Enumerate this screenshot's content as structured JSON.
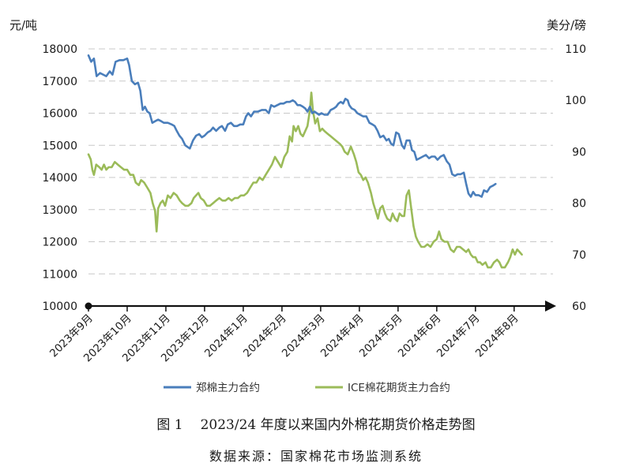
{
  "chart_data": {
    "type": "line",
    "title": "",
    "y_left": {
      "label": "元/吨",
      "range": [
        10000,
        18000
      ],
      "ticks": [
        10000,
        11000,
        12000,
        13000,
        14000,
        15000,
        16000,
        17000,
        18000
      ]
    },
    "y_right": {
      "label": "美分/磅",
      "range": [
        60,
        110
      ],
      "ticks": [
        60,
        70,
        80,
        90,
        100,
        110
      ]
    },
    "x_labels": [
      "2023年9月",
      "2023年10月",
      "2023年11月",
      "2023年12月",
      "2024年1月",
      "2024年2月",
      "2024年3月",
      "2024年4月",
      "2024年5月",
      "2024年6月",
      "2024年7月",
      "2024年8月"
    ],
    "x_range": [
      0,
      11.8
    ],
    "grid": "horizontal dashed",
    "legend_position": "bottom",
    "series": [
      {
        "name": "郑棉主力合约",
        "axis": "left",
        "color": "#4a7ebb",
        "points": [
          [
            0,
            17800
          ],
          [
            0.07,
            17600
          ],
          [
            0.14,
            17700
          ],
          [
            0.21,
            17150
          ],
          [
            0.3,
            17250
          ],
          [
            0.38,
            17200
          ],
          [
            0.46,
            17150
          ],
          [
            0.55,
            17300
          ],
          [
            0.62,
            17200
          ],
          [
            0.7,
            17600
          ],
          [
            0.8,
            17650
          ],
          [
            0.9,
            17650
          ],
          [
            1.0,
            17700
          ],
          [
            1.05,
            17500
          ],
          [
            1.12,
            17000
          ],
          [
            1.2,
            16900
          ],
          [
            1.28,
            16950
          ],
          [
            1.34,
            16700
          ],
          [
            1.4,
            16100
          ],
          [
            1.46,
            16200
          ],
          [
            1.52,
            16050
          ],
          [
            1.58,
            16000
          ],
          [
            1.65,
            15700
          ],
          [
            1.72,
            15750
          ],
          [
            1.8,
            15800
          ],
          [
            1.88,
            15750
          ],
          [
            1.95,
            15700
          ],
          [
            2.05,
            15700
          ],
          [
            2.15,
            15650
          ],
          [
            2.22,
            15600
          ],
          [
            2.28,
            15450
          ],
          [
            2.35,
            15300
          ],
          [
            2.42,
            15200
          ],
          [
            2.5,
            15000
          ],
          [
            2.56,
            14950
          ],
          [
            2.62,
            14900
          ],
          [
            2.7,
            15150
          ],
          [
            2.78,
            15300
          ],
          [
            2.86,
            15350
          ],
          [
            2.93,
            15250
          ],
          [
            3.0,
            15300
          ],
          [
            3.08,
            15400
          ],
          [
            3.15,
            15450
          ],
          [
            3.22,
            15550
          ],
          [
            3.3,
            15450
          ],
          [
            3.38,
            15550
          ],
          [
            3.45,
            15600
          ],
          [
            3.53,
            15450
          ],
          [
            3.6,
            15650
          ],
          [
            3.68,
            15700
          ],
          [
            3.76,
            15600
          ],
          [
            3.84,
            15600
          ],
          [
            3.92,
            15650
          ],
          [
            4.0,
            15650
          ],
          [
            4.07,
            15900
          ],
          [
            4.13,
            16000
          ],
          [
            4.2,
            15900
          ],
          [
            4.28,
            16050
          ],
          [
            4.38,
            16050
          ],
          [
            4.48,
            16100
          ],
          [
            4.58,
            16100
          ],
          [
            4.66,
            16000
          ],
          [
            4.72,
            16250
          ],
          [
            4.8,
            16200
          ],
          [
            4.88,
            16250
          ],
          [
            4.96,
            16300
          ],
          [
            5.04,
            16300
          ],
          [
            5.12,
            16350
          ],
          [
            5.2,
            16350
          ],
          [
            5.28,
            16400
          ],
          [
            5.34,
            16350
          ],
          [
            5.4,
            16250
          ],
          [
            5.47,
            16250
          ],
          [
            5.54,
            16200
          ],
          [
            5.6,
            16150
          ],
          [
            5.66,
            16050
          ],
          [
            5.72,
            16200
          ],
          [
            5.78,
            16000
          ],
          [
            5.84,
            16050
          ],
          [
            5.9,
            16000
          ],
          [
            5.96,
            15950
          ],
          [
            6.02,
            16000
          ],
          [
            6.1,
            15950
          ],
          [
            6.18,
            15950
          ],
          [
            6.26,
            16100
          ],
          [
            6.34,
            16150
          ],
          [
            6.4,
            16200
          ],
          [
            6.46,
            16300
          ],
          [
            6.52,
            16350
          ],
          [
            6.58,
            16300
          ],
          [
            6.64,
            16450
          ],
          [
            6.7,
            16400
          ],
          [
            6.74,
            16250
          ],
          [
            6.8,
            16150
          ],
          [
            6.88,
            16100
          ],
          [
            6.95,
            16000
          ],
          [
            7.02,
            15950
          ],
          [
            7.1,
            15900
          ],
          [
            7.18,
            15900
          ],
          [
            7.26,
            15700
          ],
          [
            7.34,
            15650
          ],
          [
            7.4,
            15600
          ],
          [
            7.47,
            15450
          ],
          [
            7.54,
            15250
          ],
          [
            7.62,
            15300
          ],
          [
            7.7,
            15150
          ],
          [
            7.76,
            15200
          ],
          [
            7.82,
            15050
          ],
          [
            7.88,
            15000
          ],
          [
            7.95,
            15400
          ],
          [
            8.02,
            15350
          ],
          [
            8.1,
            15000
          ],
          [
            8.16,
            14900
          ],
          [
            8.22,
            15150
          ],
          [
            8.3,
            15150
          ],
          [
            8.36,
            14850
          ],
          [
            8.42,
            14800
          ],
          [
            8.48,
            14550
          ],
          [
            8.56,
            14600
          ],
          [
            8.64,
            14650
          ],
          [
            8.72,
            14700
          ],
          [
            8.8,
            14600
          ],
          [
            8.87,
            14650
          ],
          [
            8.95,
            14650
          ],
          [
            9.02,
            14550
          ],
          [
            9.1,
            14650
          ],
          [
            9.18,
            14700
          ],
          [
            9.26,
            14500
          ],
          [
            9.33,
            14400
          ],
          [
            9.4,
            14100
          ],
          [
            9.47,
            14050
          ],
          [
            9.54,
            14100
          ],
          [
            9.62,
            14100
          ],
          [
            9.7,
            14150
          ],
          [
            9.76,
            13800
          ],
          [
            9.82,
            13500
          ],
          [
            9.88,
            13400
          ],
          [
            9.94,
            13550
          ],
          [
            10.0,
            13450
          ],
          [
            10.08,
            13450
          ],
          [
            10.16,
            13400
          ],
          [
            10.22,
            13600
          ],
          [
            10.3,
            13550
          ],
          [
            10.38,
            13700
          ],
          [
            10.46,
            13750
          ],
          [
            10.52,
            13800
          ]
        ]
      },
      {
        "name": "ICE棉花期货主力合约",
        "axis": "right",
        "color": "#9bbb59",
        "points": [
          [
            0,
            89.5
          ],
          [
            0.06,
            88.5
          ],
          [
            0.1,
            86.5
          ],
          [
            0.14,
            85.5
          ],
          [
            0.2,
            87.5
          ],
          [
            0.28,
            87
          ],
          [
            0.34,
            86.5
          ],
          [
            0.4,
            87.5
          ],
          [
            0.46,
            86.5
          ],
          [
            0.52,
            87
          ],
          [
            0.6,
            87
          ],
          [
            0.68,
            88
          ],
          [
            0.76,
            87.5
          ],
          [
            0.84,
            87
          ],
          [
            0.92,
            86.5
          ],
          [
            1.0,
            86.5
          ],
          [
            1.08,
            85.5
          ],
          [
            1.16,
            85.5
          ],
          [
            1.22,
            84
          ],
          [
            1.3,
            83.5
          ],
          [
            1.36,
            84.5
          ],
          [
            1.44,
            84
          ],
          [
            1.52,
            83
          ],
          [
            1.6,
            82
          ],
          [
            1.66,
            80
          ],
          [
            1.72,
            78.5
          ],
          [
            1.76,
            74.5
          ],
          [
            1.8,
            79
          ],
          [
            1.86,
            80
          ],
          [
            1.92,
            80.5
          ],
          [
            1.98,
            79.5
          ],
          [
            2.05,
            81.5
          ],
          [
            2.12,
            81
          ],
          [
            2.2,
            82
          ],
          [
            2.28,
            81.5
          ],
          [
            2.36,
            80.5
          ],
          [
            2.42,
            80
          ],
          [
            2.5,
            79.5
          ],
          [
            2.58,
            79.5
          ],
          [
            2.66,
            80
          ],
          [
            2.72,
            81
          ],
          [
            2.78,
            81.5
          ],
          [
            2.84,
            82
          ],
          [
            2.9,
            81
          ],
          [
            2.98,
            80.5
          ],
          [
            3.06,
            79.5
          ],
          [
            3.14,
            79.5
          ],
          [
            3.22,
            80
          ],
          [
            3.3,
            80.5
          ],
          [
            3.38,
            81
          ],
          [
            3.46,
            80.5
          ],
          [
            3.54,
            80.5
          ],
          [
            3.62,
            81
          ],
          [
            3.7,
            80.5
          ],
          [
            3.78,
            81
          ],
          [
            3.86,
            81
          ],
          [
            3.94,
            81.5
          ],
          [
            4.02,
            81.5
          ],
          [
            4.1,
            82
          ],
          [
            4.18,
            83
          ],
          [
            4.26,
            84
          ],
          [
            4.34,
            84
          ],
          [
            4.42,
            85
          ],
          [
            4.5,
            84.5
          ],
          [
            4.58,
            85.5
          ],
          [
            4.66,
            86.5
          ],
          [
            4.74,
            87.5
          ],
          [
            4.82,
            89
          ],
          [
            4.9,
            88
          ],
          [
            4.98,
            87
          ],
          [
            5.06,
            89
          ],
          [
            5.14,
            90
          ],
          [
            5.2,
            93
          ],
          [
            5.26,
            92
          ],
          [
            5.3,
            95
          ],
          [
            5.36,
            94
          ],
          [
            5.42,
            95
          ],
          [
            5.48,
            93.5
          ],
          [
            5.54,
            93
          ],
          [
            5.6,
            94
          ],
          [
            5.66,
            95
          ],
          [
            5.72,
            98
          ],
          [
            5.76,
            101.5
          ],
          [
            5.8,
            98
          ],
          [
            5.86,
            95.5
          ],
          [
            5.92,
            96.5
          ],
          [
            5.98,
            94
          ],
          [
            6.04,
            94.5
          ],
          [
            6.1,
            94
          ],
          [
            6.18,
            93.5
          ],
          [
            6.26,
            93
          ],
          [
            6.34,
            92.5
          ],
          [
            6.42,
            92
          ],
          [
            6.5,
            91.5
          ],
          [
            6.56,
            91
          ],
          [
            6.62,
            90
          ],
          [
            6.7,
            89.5
          ],
          [
            6.78,
            91
          ],
          [
            6.86,
            89.5
          ],
          [
            6.92,
            88
          ],
          [
            6.98,
            86
          ],
          [
            7.04,
            85.5
          ],
          [
            7.1,
            84.5
          ],
          [
            7.16,
            85
          ],
          [
            7.22,
            84
          ],
          [
            7.3,
            82
          ],
          [
            7.36,
            80
          ],
          [
            7.42,
            78.5
          ],
          [
            7.48,
            77
          ],
          [
            7.54,
            79
          ],
          [
            7.6,
            79.5
          ],
          [
            7.66,
            78
          ],
          [
            7.72,
            77
          ],
          [
            7.8,
            76.5
          ],
          [
            7.86,
            78
          ],
          [
            7.92,
            77
          ],
          [
            7.98,
            76.5
          ],
          [
            8.04,
            78
          ],
          [
            8.1,
            77.5
          ],
          [
            8.16,
            77.5
          ],
          [
            8.22,
            81.5
          ],
          [
            8.28,
            82.5
          ],
          [
            8.34,
            79
          ],
          [
            8.4,
            75.5
          ],
          [
            8.46,
            73.5
          ],
          [
            8.52,
            72.5
          ],
          [
            8.6,
            71.5
          ],
          [
            8.68,
            71.5
          ],
          [
            8.76,
            72
          ],
          [
            8.84,
            71.5
          ],
          [
            8.92,
            72.5
          ],
          [
            9.0,
            73
          ],
          [
            9.06,
            74.5
          ],
          [
            9.12,
            73
          ],
          [
            9.2,
            72.5
          ],
          [
            9.28,
            72.5
          ],
          [
            9.36,
            71
          ],
          [
            9.44,
            70.5
          ],
          [
            9.52,
            71.5
          ],
          [
            9.6,
            71.5
          ],
          [
            9.68,
            71
          ],
          [
            9.76,
            70.5
          ],
          [
            9.82,
            71
          ],
          [
            9.88,
            70
          ],
          [
            9.94,
            69.5
          ],
          [
            10.0,
            69.5
          ],
          [
            10.06,
            68.5
          ],
          [
            10.12,
            68.5
          ],
          [
            10.18,
            68
          ],
          [
            10.26,
            68.5
          ],
          [
            10.32,
            67.5
          ],
          [
            10.4,
            67.5
          ],
          [
            10.48,
            68.5
          ],
          [
            10.56,
            69
          ],
          [
            10.62,
            68.5
          ],
          [
            10.68,
            67.5
          ],
          [
            10.76,
            67.5
          ],
          [
            10.84,
            68.5
          ],
          [
            10.9,
            69.5
          ],
          [
            10.96,
            71
          ],
          [
            11.02,
            70
          ],
          [
            11.08,
            71
          ],
          [
            11.14,
            70.5
          ],
          [
            11.2,
            70
          ]
        ]
      }
    ]
  },
  "caption": {
    "figure_number": "图 1",
    "text": "2023/24 年度以来国内外棉花期货价格走势图"
  },
  "source": "数据来源：国家棉花市场监测系统"
}
